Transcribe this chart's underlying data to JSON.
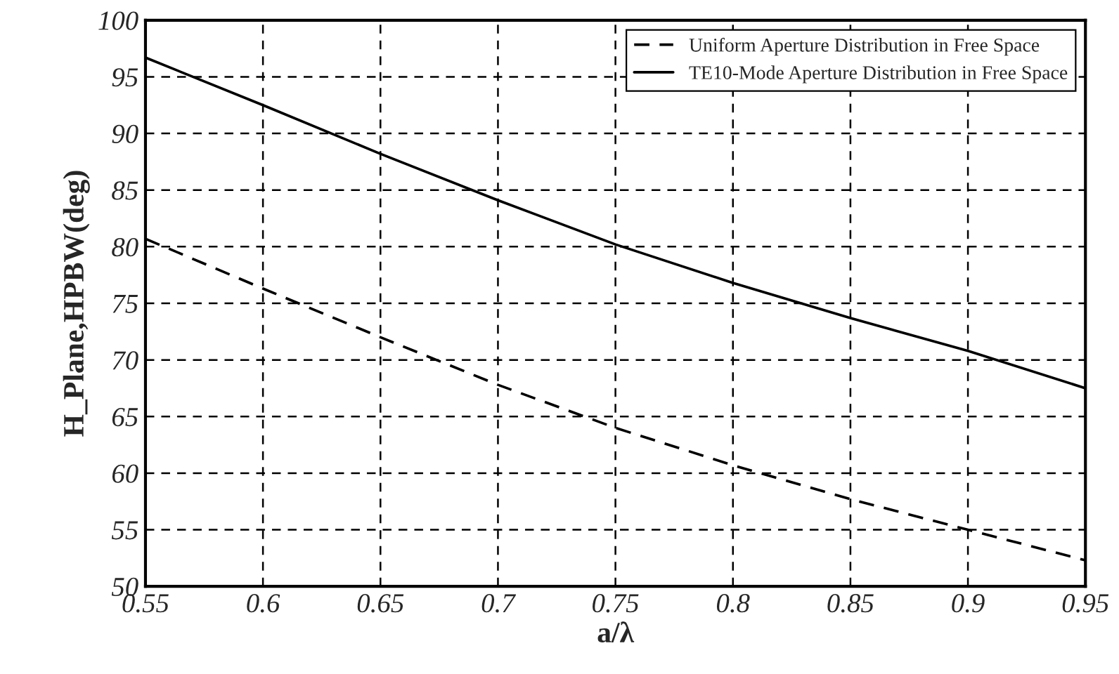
{
  "chart_data": {
    "type": "line",
    "xlabel": "a/λ",
    "ylabel": "H_Plane,HPBW(deg)",
    "x": [
      0.55,
      0.6,
      0.65,
      0.7,
      0.75,
      0.8,
      0.85,
      0.9,
      0.95
    ],
    "series": [
      {
        "name": "Uniform Aperture Distribution in Free Space",
        "color": "#000000",
        "line_style": "dashed",
        "values": [
          80.7,
          76.3,
          72.0,
          67.8,
          64.0,
          60.7,
          57.7,
          55.0,
          52.3
        ]
      },
      {
        "name": "TE10-Mode Aperture Distribution in Free Space",
        "color": "#000000",
        "line_style": "solid",
        "values": [
          96.7,
          92.5,
          88.2,
          84.1,
          80.2,
          76.8,
          73.7,
          70.8,
          67.5
        ]
      }
    ],
    "xlim": [
      0.55,
      0.95
    ],
    "xticks": [
      0.55,
      0.6,
      0.65,
      0.7,
      0.75,
      0.8,
      0.85,
      0.9,
      0.95
    ],
    "ylim": [
      50,
      100
    ],
    "yticks": [
      50,
      55,
      60,
      65,
      70,
      75,
      80,
      85,
      90,
      95,
      100
    ],
    "grid": true,
    "legend": "top right",
    "marker": "none"
  }
}
